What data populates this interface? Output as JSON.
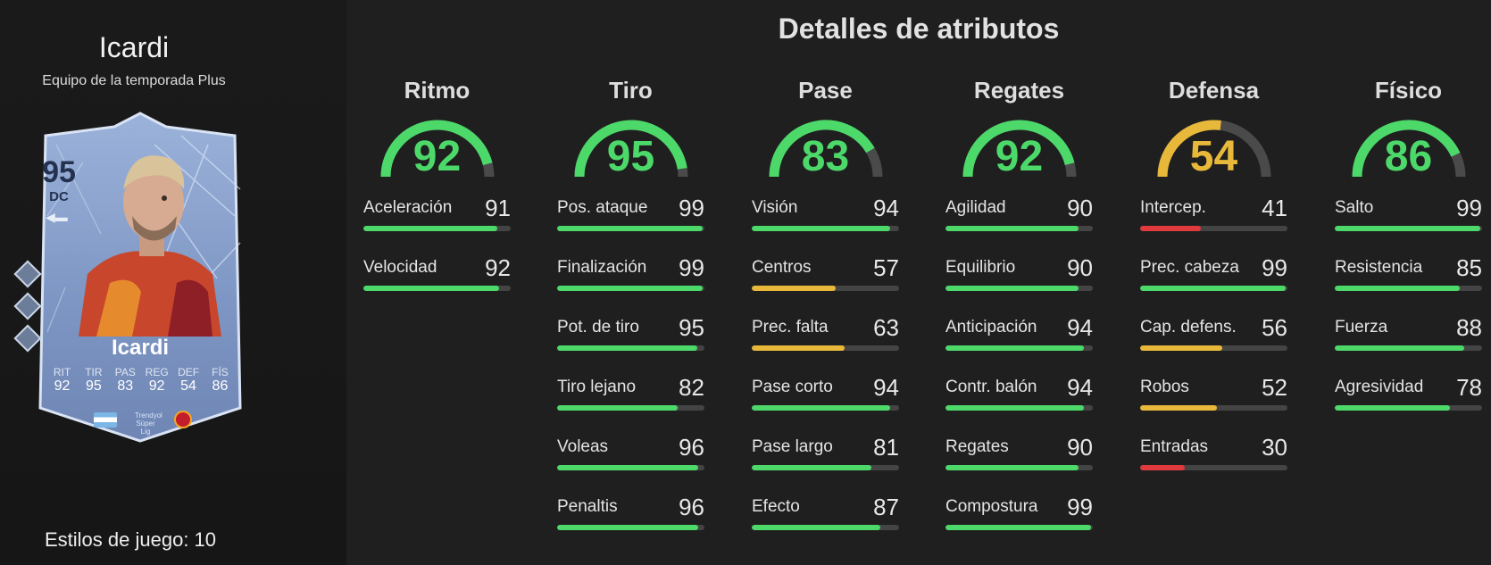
{
  "player": {
    "name": "Icardi",
    "card_name": "Icardi",
    "subtitle": "Equipo de la temporada Plus",
    "rating": "95",
    "position": "DC",
    "card_stats": [
      {
        "label": "RIT",
        "value": "92"
      },
      {
        "label": "TIR",
        "value": "95"
      },
      {
        "label": "PAS",
        "value": "83"
      },
      {
        "label": "REG",
        "value": "92"
      },
      {
        "label": "DEF",
        "value": "54"
      },
      {
        "label": "FÍS",
        "value": "86"
      }
    ],
    "league_label": "Trendyol Süper Lig",
    "playstyles": "Estilos de juego: 10"
  },
  "panel_title": "Detalles de atributos",
  "colors": {
    "green": "#4cd96a",
    "yellow": "#e8b83a",
    "red": "#e03a3e",
    "track": "#444444",
    "card_blue": "#8aa4cf"
  },
  "categories": [
    {
      "name": "Ritmo",
      "value": 92,
      "stats": [
        {
          "name": "Aceleración",
          "value": 91
        },
        {
          "name": "Velocidad",
          "value": 92
        }
      ]
    },
    {
      "name": "Tiro",
      "value": 95,
      "stats": [
        {
          "name": "Pos. ataque",
          "value": 99
        },
        {
          "name": "Finalización",
          "value": 99
        },
        {
          "name": "Pot. de tiro",
          "value": 95
        },
        {
          "name": "Tiro lejano",
          "value": 82
        },
        {
          "name": "Voleas",
          "value": 96
        },
        {
          "name": "Penaltis",
          "value": 96
        }
      ]
    },
    {
      "name": "Pase",
      "value": 83,
      "stats": [
        {
          "name": "Visión",
          "value": 94
        },
        {
          "name": "Centros",
          "value": 57
        },
        {
          "name": "Prec. falta",
          "value": 63
        },
        {
          "name": "Pase corto",
          "value": 94
        },
        {
          "name": "Pase largo",
          "value": 81
        },
        {
          "name": "Efecto",
          "value": 87
        }
      ]
    },
    {
      "name": "Regates",
      "value": 92,
      "stats": [
        {
          "name": "Agilidad",
          "value": 90
        },
        {
          "name": "Equilibrio",
          "value": 90
        },
        {
          "name": "Anticipación",
          "value": 94
        },
        {
          "name": "Contr. balón",
          "value": 94
        },
        {
          "name": "Regates",
          "value": 90
        },
        {
          "name": "Compostura",
          "value": 99
        }
      ]
    },
    {
      "name": "Defensa",
      "value": 54,
      "stats": [
        {
          "name": "Intercep.",
          "value": 41
        },
        {
          "name": "Prec. cabeza",
          "value": 99
        },
        {
          "name": "Cap. defens.",
          "value": 56
        },
        {
          "name": "Robos",
          "value": 52
        },
        {
          "name": "Entradas",
          "value": 30
        }
      ]
    },
    {
      "name": "Físico",
      "value": 86,
      "stats": [
        {
          "name": "Salto",
          "value": 99
        },
        {
          "name": "Resistencia",
          "value": 85
        },
        {
          "name": "Fuerza",
          "value": 88
        },
        {
          "name": "Agresividad",
          "value": 78
        }
      ]
    }
  ]
}
